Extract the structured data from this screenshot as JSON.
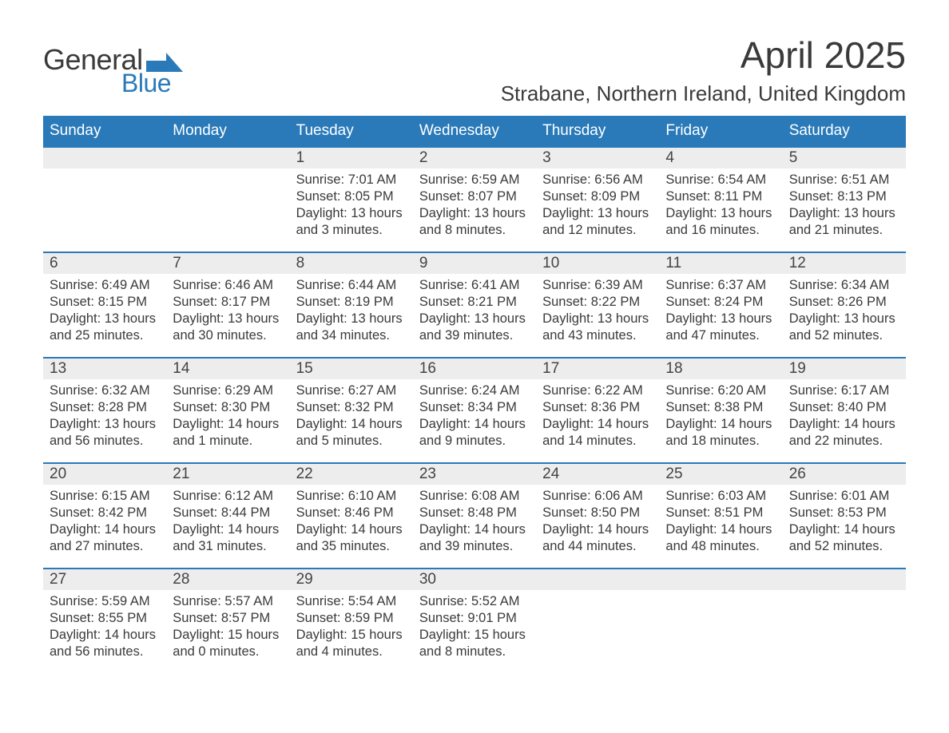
{
  "logo": {
    "text_general": "General",
    "text_blue": "Blue",
    "flag_color": "#2a7ab9"
  },
  "title": "April 2025",
  "location": "Strabane, Northern Ireland, United Kingdom",
  "colors": {
    "header_bg": "#2a7ab9",
    "header_fg": "#ffffff",
    "daynum_bg": "#ededed",
    "text": "#3a3a3a",
    "rule": "#2a7ab9",
    "background": "#ffffff"
  },
  "typography": {
    "title_fontsize": 46,
    "location_fontsize": 26,
    "dayheader_fontsize": 19,
    "body_fontsize": 16.5,
    "font_family": "Arial"
  },
  "columns": [
    "Sunday",
    "Monday",
    "Tuesday",
    "Wednesday",
    "Thursday",
    "Friday",
    "Saturday"
  ],
  "labels": {
    "sunrise": "Sunrise:",
    "sunset": "Sunset:",
    "daylight": "Daylight:"
  },
  "weeks": [
    [
      {
        "day": "",
        "sunrise": "",
        "sunset": "",
        "daylight": ""
      },
      {
        "day": "",
        "sunrise": "",
        "sunset": "",
        "daylight": ""
      },
      {
        "day": "1",
        "sunrise": "7:01 AM",
        "sunset": "8:05 PM",
        "daylight": "13 hours and 3 minutes."
      },
      {
        "day": "2",
        "sunrise": "6:59 AM",
        "sunset": "8:07 PM",
        "daylight": "13 hours and 8 minutes."
      },
      {
        "day": "3",
        "sunrise": "6:56 AM",
        "sunset": "8:09 PM",
        "daylight": "13 hours and 12 minutes."
      },
      {
        "day": "4",
        "sunrise": "6:54 AM",
        "sunset": "8:11 PM",
        "daylight": "13 hours and 16 minutes."
      },
      {
        "day": "5",
        "sunrise": "6:51 AM",
        "sunset": "8:13 PM",
        "daylight": "13 hours and 21 minutes."
      }
    ],
    [
      {
        "day": "6",
        "sunrise": "6:49 AM",
        "sunset": "8:15 PM",
        "daylight": "13 hours and 25 minutes."
      },
      {
        "day": "7",
        "sunrise": "6:46 AM",
        "sunset": "8:17 PM",
        "daylight": "13 hours and 30 minutes."
      },
      {
        "day": "8",
        "sunrise": "6:44 AM",
        "sunset": "8:19 PM",
        "daylight": "13 hours and 34 minutes."
      },
      {
        "day": "9",
        "sunrise": "6:41 AM",
        "sunset": "8:21 PM",
        "daylight": "13 hours and 39 minutes."
      },
      {
        "day": "10",
        "sunrise": "6:39 AM",
        "sunset": "8:22 PM",
        "daylight": "13 hours and 43 minutes."
      },
      {
        "day": "11",
        "sunrise": "6:37 AM",
        "sunset": "8:24 PM",
        "daylight": "13 hours and 47 minutes."
      },
      {
        "day": "12",
        "sunrise": "6:34 AM",
        "sunset": "8:26 PM",
        "daylight": "13 hours and 52 minutes."
      }
    ],
    [
      {
        "day": "13",
        "sunrise": "6:32 AM",
        "sunset": "8:28 PM",
        "daylight": "13 hours and 56 minutes."
      },
      {
        "day": "14",
        "sunrise": "6:29 AM",
        "sunset": "8:30 PM",
        "daylight": "14 hours and 1 minute."
      },
      {
        "day": "15",
        "sunrise": "6:27 AM",
        "sunset": "8:32 PM",
        "daylight": "14 hours and 5 minutes."
      },
      {
        "day": "16",
        "sunrise": "6:24 AM",
        "sunset": "8:34 PM",
        "daylight": "14 hours and 9 minutes."
      },
      {
        "day": "17",
        "sunrise": "6:22 AM",
        "sunset": "8:36 PM",
        "daylight": "14 hours and 14 minutes."
      },
      {
        "day": "18",
        "sunrise": "6:20 AM",
        "sunset": "8:38 PM",
        "daylight": "14 hours and 18 minutes."
      },
      {
        "day": "19",
        "sunrise": "6:17 AM",
        "sunset": "8:40 PM",
        "daylight": "14 hours and 22 minutes."
      }
    ],
    [
      {
        "day": "20",
        "sunrise": "6:15 AM",
        "sunset": "8:42 PM",
        "daylight": "14 hours and 27 minutes."
      },
      {
        "day": "21",
        "sunrise": "6:12 AM",
        "sunset": "8:44 PM",
        "daylight": "14 hours and 31 minutes."
      },
      {
        "day": "22",
        "sunrise": "6:10 AM",
        "sunset": "8:46 PM",
        "daylight": "14 hours and 35 minutes."
      },
      {
        "day": "23",
        "sunrise": "6:08 AM",
        "sunset": "8:48 PM",
        "daylight": "14 hours and 39 minutes."
      },
      {
        "day": "24",
        "sunrise": "6:06 AM",
        "sunset": "8:50 PM",
        "daylight": "14 hours and 44 minutes."
      },
      {
        "day": "25",
        "sunrise": "6:03 AM",
        "sunset": "8:51 PM",
        "daylight": "14 hours and 48 minutes."
      },
      {
        "day": "26",
        "sunrise": "6:01 AM",
        "sunset": "8:53 PM",
        "daylight": "14 hours and 52 minutes."
      }
    ],
    [
      {
        "day": "27",
        "sunrise": "5:59 AM",
        "sunset": "8:55 PM",
        "daylight": "14 hours and 56 minutes."
      },
      {
        "day": "28",
        "sunrise": "5:57 AM",
        "sunset": "8:57 PM",
        "daylight": "15 hours and 0 minutes."
      },
      {
        "day": "29",
        "sunrise": "5:54 AM",
        "sunset": "8:59 PM",
        "daylight": "15 hours and 4 minutes."
      },
      {
        "day": "30",
        "sunrise": "5:52 AM",
        "sunset": "9:01 PM",
        "daylight": "15 hours and 8 minutes."
      },
      {
        "day": "",
        "sunrise": "",
        "sunset": "",
        "daylight": ""
      },
      {
        "day": "",
        "sunrise": "",
        "sunset": "",
        "daylight": ""
      },
      {
        "day": "",
        "sunrise": "",
        "sunset": "",
        "daylight": ""
      }
    ]
  ]
}
